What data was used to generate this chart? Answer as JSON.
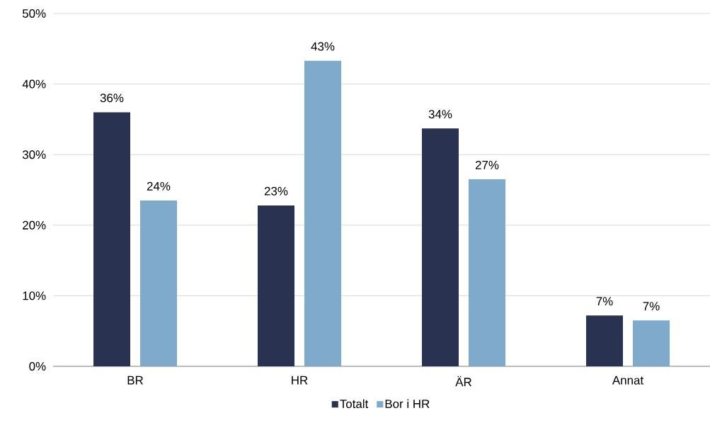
{
  "chart_data": {
    "type": "bar",
    "categories": [
      "BR",
      "HR",
      "ÄR",
      "Annat"
    ],
    "series": [
      {
        "name": "Totalt",
        "color": "#293351",
        "values": [
          36.0,
          22.8,
          33.7,
          7.2
        ],
        "value_labels": [
          "36%",
          "23%",
          "34%",
          "7%"
        ]
      },
      {
        "name": "Bor i HR",
        "color": "#7faacb",
        "values": [
          23.5,
          43.3,
          26.5,
          6.5
        ],
        "value_labels": [
          "24%",
          "43%",
          "27%",
          "7%"
        ]
      }
    ],
    "ylim": [
      0,
      50
    ],
    "yticks": [
      {
        "value": 0,
        "label": "0%"
      },
      {
        "value": 10,
        "label": "10%"
      },
      {
        "value": 20,
        "label": "20%"
      },
      {
        "value": 30,
        "label": "30%"
      },
      {
        "value": 40,
        "label": "40%"
      },
      {
        "value": 50,
        "label": "50%"
      }
    ],
    "grid": "y",
    "legend": "bottom"
  }
}
